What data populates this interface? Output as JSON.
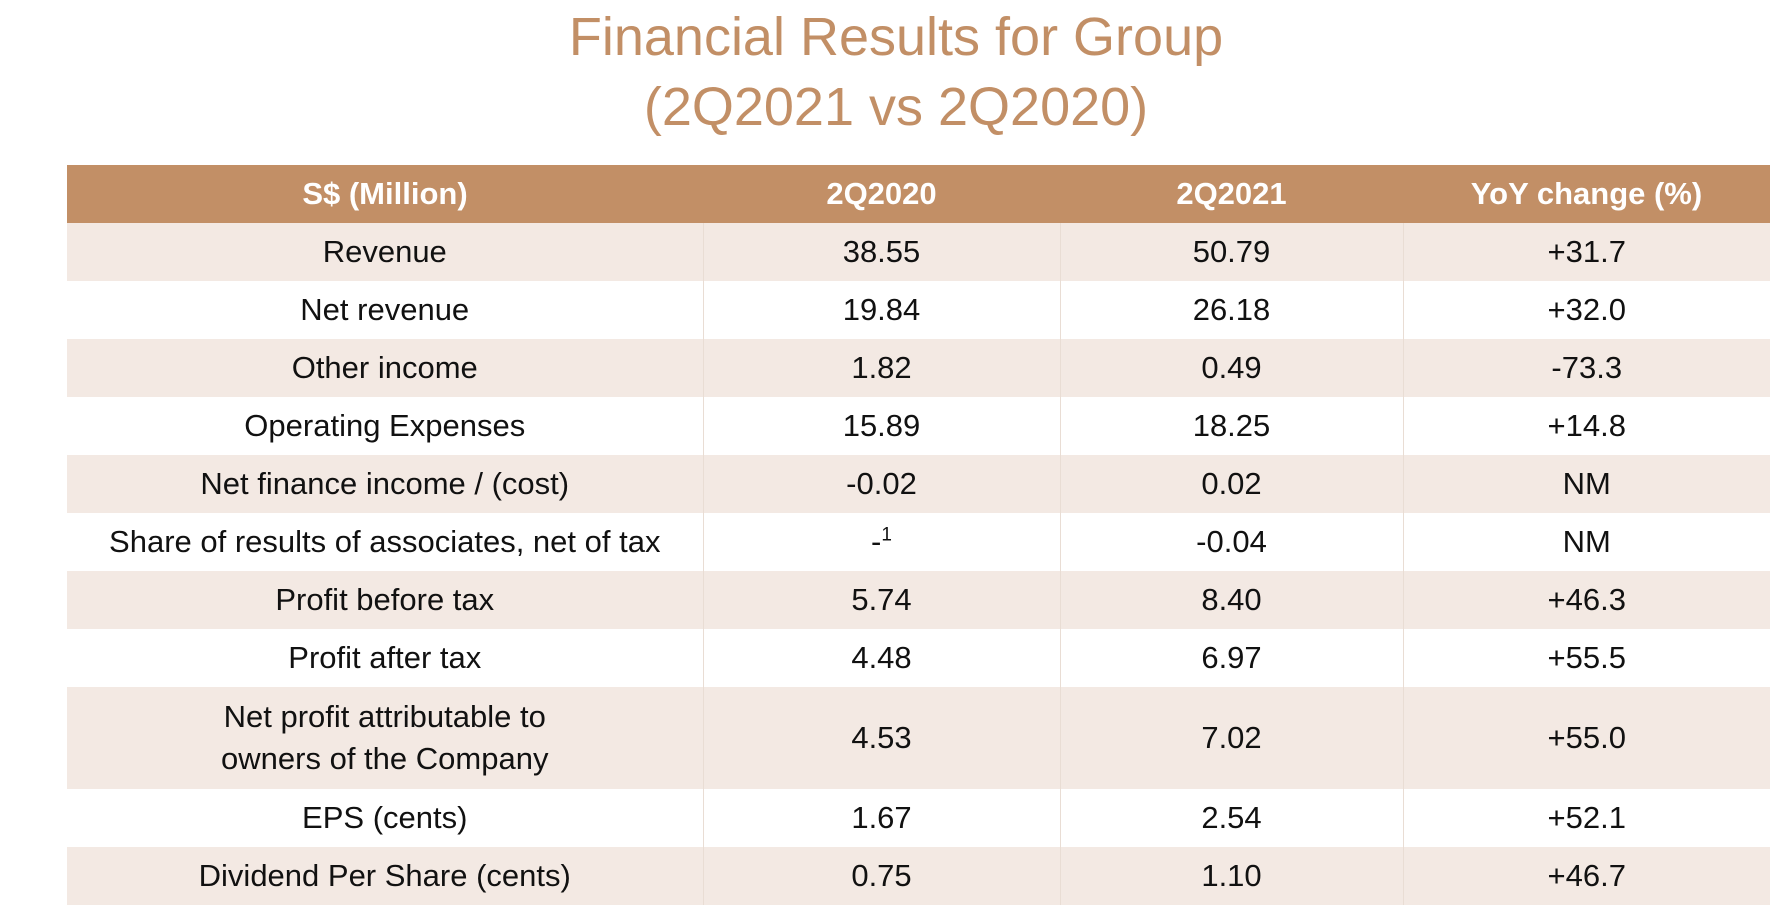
{
  "title": {
    "line1": "Financial Results for Group",
    "line2": "(2Q2021 vs 2Q2020)"
  },
  "colors": {
    "accent": "#c28f66",
    "band": "#f3e9e3"
  },
  "table": {
    "headers": [
      "S$ (Million)",
      "2Q2020",
      "2Q2021",
      "YoY change (%)"
    ],
    "rows": [
      {
        "label": "Revenue",
        "q2020": "38.55",
        "q2021": "50.79",
        "yoy": "+31.7"
      },
      {
        "label": "Net revenue",
        "q2020": "19.84",
        "q2021": "26.18",
        "yoy": "+32.0"
      },
      {
        "label": "Other income",
        "q2020": "1.82",
        "q2021": "0.49",
        "yoy": "-73.3"
      },
      {
        "label": "Operating Expenses",
        "q2020": "15.89",
        "q2021": "18.25",
        "yoy": "+14.8"
      },
      {
        "label": "Net finance income / (cost)",
        "q2020": "-0.02",
        "q2021": "0.02",
        "yoy": "NM"
      },
      {
        "label": "Share of results of associates, net of tax",
        "q2020": "-",
        "q2020_note": "1",
        "q2021": "-0.04",
        "yoy": "NM"
      },
      {
        "label": "Profit before tax",
        "q2020": "5.74",
        "q2021": "8.40",
        "yoy": "+46.3"
      },
      {
        "label": "Profit after tax",
        "q2020": "4.48",
        "q2021": "6.97",
        "yoy": "+55.5"
      },
      {
        "label_line1": "Net profit attributable to",
        "label_line2": "owners of the Company",
        "q2020": "4.53",
        "q2021": "7.02",
        "yoy": "+55.0"
      },
      {
        "label": "EPS (cents)",
        "q2020": "1.67",
        "q2021": "2.54",
        "yoy": "+52.1"
      },
      {
        "label": "Dividend Per Share (cents)",
        "q2020": "0.75",
        "q2021": "1.10",
        "yoy": "+46.7"
      }
    ]
  }
}
